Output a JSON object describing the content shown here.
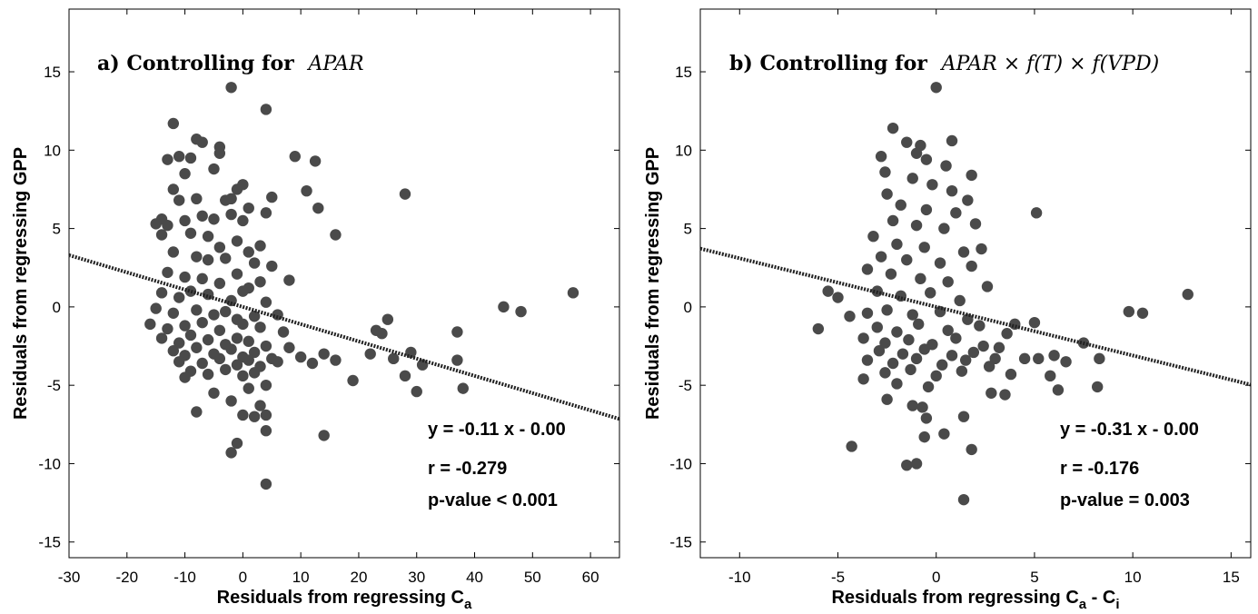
{
  "chart_data": [
    {
      "type": "scatter",
      "panel": "a",
      "title_prefix": "a) Controlling for",
      "title_math": "APAR",
      "xlabel_main": "Residuals from regressing C",
      "xlabel_sub": "a",
      "xlabel_tail": "",
      "ylabel": "Residuals from regressing GPP",
      "xlim": [
        -30,
        65
      ],
      "ylim": [
        -16,
        19
      ],
      "xticks": [
        -30,
        -20,
        -10,
        0,
        10,
        20,
        30,
        40,
        50,
        60
      ],
      "yticks": [
        -15,
        -10,
        -5,
        0,
        5,
        10,
        15
      ],
      "fit": {
        "slope": -0.11,
        "intercept": 0.0
      },
      "stats": [
        "y = -0.11 x - 0.00",
        "r = -0.279",
        "p-value < 0.001"
      ],
      "point_color": "#4a4a4a",
      "points": [
        [
          -2,
          14
        ],
        [
          4,
          12.6
        ],
        [
          -12,
          11.7
        ],
        [
          -8,
          10.7
        ],
        [
          -7,
          10.5
        ],
        [
          -4,
          10.2
        ],
        [
          -4,
          9.8
        ],
        [
          9,
          9.6
        ],
        [
          12.5,
          9.3
        ],
        [
          -13,
          9.4
        ],
        [
          -11,
          9.6
        ],
        [
          -9,
          9.5
        ],
        [
          -10,
          8.5
        ],
        [
          -5,
          8.8
        ],
        [
          -1,
          7.5
        ],
        [
          0,
          7.8
        ],
        [
          11,
          7.4
        ],
        [
          5,
          7.0
        ],
        [
          -12,
          7.5
        ],
        [
          -11,
          6.8
        ],
        [
          -8,
          6.9
        ],
        [
          -3,
          6.8
        ],
        [
          -2,
          6.9
        ],
        [
          1,
          6.3
        ],
        [
          13,
          6.3
        ],
        [
          28,
          7.2
        ],
        [
          4,
          6.0
        ],
        [
          -14,
          5.6
        ],
        [
          -13,
          5.2
        ],
        [
          -10,
          5.5
        ],
        [
          -7,
          5.8
        ],
        [
          -5,
          5.6
        ],
        [
          -2,
          5.9
        ],
        [
          0,
          5.5
        ],
        [
          -15,
          5.3
        ],
        [
          -14,
          4.6
        ],
        [
          -9,
          4.7
        ],
        [
          -6,
          4.5
        ],
        [
          -4,
          3.8
        ],
        [
          -1,
          4.2
        ],
        [
          1,
          3.5
        ],
        [
          3,
          3.9
        ],
        [
          16,
          4.6
        ],
        [
          -12,
          3.5
        ],
        [
          -8,
          3.2
        ],
        [
          -6,
          3.0
        ],
        [
          -3,
          3.1
        ],
        [
          2,
          2.8
        ],
        [
          5,
          2.6
        ],
        [
          -13,
          2.2
        ],
        [
          -10,
          1.9
        ],
        [
          -7,
          1.8
        ],
        [
          -4,
          1.5
        ],
        [
          -1,
          2.1
        ],
        [
          1,
          1.2
        ],
        [
          3,
          1.6
        ],
        [
          8,
          1.7
        ],
        [
          -14,
          0.9
        ],
        [
          -11,
          0.6
        ],
        [
          -9,
          1.0
        ],
        [
          -6,
          0.8
        ],
        [
          -2,
          0.4
        ],
        [
          0,
          1.0
        ],
        [
          4,
          0.3
        ],
        [
          -15,
          -0.1
        ],
        [
          -12,
          -0.4
        ],
        [
          -8,
          -0.2
        ],
        [
          -5,
          -0.5
        ],
        [
          -3,
          -0.3
        ],
        [
          -1,
          -0.8
        ],
        [
          2,
          -0.6
        ],
        [
          6,
          -0.5
        ],
        [
          -16,
          -1.1
        ],
        [
          -13,
          -1.4
        ],
        [
          -10,
          -1.2
        ],
        [
          -7,
          -1.0
        ],
        [
          -4,
          -1.5
        ],
        [
          0,
          -1.1
        ],
        [
          3,
          -1.3
        ],
        [
          7,
          -1.6
        ],
        [
          -14,
          -2.0
        ],
        [
          -11,
          -2.3
        ],
        [
          -9,
          -1.8
        ],
        [
          -6,
          -2.1
        ],
        [
          -3,
          -2.4
        ],
        [
          -1,
          -2.0
        ],
        [
          1,
          -2.2
        ],
        [
          4,
          -2.5
        ],
        [
          -12,
          -2.8
        ],
        [
          -10,
          -3.1
        ],
        [
          -8,
          -2.6
        ],
        [
          -5,
          -3.0
        ],
        [
          -2,
          -2.7
        ],
        [
          0,
          -3.2
        ],
        [
          2,
          -2.9
        ],
        [
          5,
          -3.3
        ],
        [
          8,
          -2.6
        ],
        [
          -11,
          -3.5
        ],
        [
          -7,
          -3.6
        ],
        [
          -4,
          -3.3
        ],
        [
          -1,
          -3.7
        ],
        [
          1,
          -3.4
        ],
        [
          3,
          -3.8
        ],
        [
          6,
          -3.5
        ],
        [
          10,
          -3.2
        ],
        [
          12,
          -3.6
        ],
        [
          -9,
          -4.1
        ],
        [
          -6,
          -4.3
        ],
        [
          -3,
          -4.0
        ],
        [
          0,
          -4.4
        ],
        [
          2,
          -4.2
        ],
        [
          -10,
          -4.5
        ],
        [
          -5,
          -5.5
        ],
        [
          1,
          -5.2
        ],
        [
          4,
          -5.0
        ],
        [
          -2,
          -6.0
        ],
        [
          3,
          -6.3
        ],
        [
          4,
          -6.9
        ],
        [
          -8,
          -6.7
        ],
        [
          0,
          -6.9
        ],
        [
          2,
          -7.0
        ],
        [
          4,
          -7.9
        ],
        [
          -1,
          -8.7
        ],
        [
          14,
          -8.2
        ],
        [
          -2,
          -9.3
        ],
        [
          4,
          -11.3
        ],
        [
          19,
          -4.7
        ],
        [
          22,
          -3.0
        ],
        [
          23,
          -1.5
        ],
        [
          24,
          -1.7
        ],
        [
          25,
          -0.8
        ],
        [
          26,
          -3.3
        ],
        [
          28,
          -4.4
        ],
        [
          29,
          -2.9
        ],
        [
          30,
          -5.4
        ],
        [
          31,
          -3.7
        ],
        [
          37,
          -1.6
        ],
        [
          37,
          -3.4
        ],
        [
          38,
          -5.2
        ],
        [
          45,
          0.0
        ],
        [
          48,
          -0.3
        ],
        [
          57,
          0.9
        ],
        [
          16,
          -3.4
        ],
        [
          14,
          -3.0
        ]
      ]
    },
    {
      "type": "scatter",
      "panel": "b",
      "title_prefix": "b) Controlling for",
      "title_math": "APAR × f(T) × f(VPD)",
      "xlabel_main": "Residuals from regressing C",
      "xlabel_sub": "a",
      "xlabel_tail": " - C",
      "xlabel_sub2": "i",
      "ylabel": "Residuals from regressing GPP",
      "xlim": [
        -12,
        16
      ],
      "ylim": [
        -16,
        19
      ],
      "xticks": [
        -10,
        -5,
        0,
        5,
        10,
        15
      ],
      "yticks": [
        -15,
        -10,
        -5,
        0,
        5,
        10,
        15
      ],
      "fit": {
        "slope": -0.31,
        "intercept": 0.0
      },
      "stats": [
        "y = -0.31 x - 0.00",
        "r = -0.176",
        "p-value = 0.003"
      ],
      "point_color": "#4a4a4a",
      "points": [
        [
          0,
          14
        ],
        [
          -2.2,
          11.4
        ],
        [
          0.8,
          10.6
        ],
        [
          -1.5,
          10.5
        ],
        [
          -0.8,
          10.3
        ],
        [
          -1.0,
          9.8
        ],
        [
          -2.8,
          9.6
        ],
        [
          -0.5,
          9.4
        ],
        [
          0.5,
          9.0
        ],
        [
          -2.6,
          8.6
        ],
        [
          -1.2,
          8.2
        ],
        [
          1.8,
          8.4
        ],
        [
          -0.2,
          7.8
        ],
        [
          -2.5,
          7.2
        ],
        [
          0.8,
          7.4
        ],
        [
          1.6,
          6.8
        ],
        [
          -1.8,
          6.5
        ],
        [
          -0.5,
          6.2
        ],
        [
          1.0,
          6.0
        ],
        [
          -2.2,
          5.5
        ],
        [
          -1.0,
          5.2
        ],
        [
          0.4,
          5.0
        ],
        [
          2.0,
          5.3
        ],
        [
          -3.2,
          4.5
        ],
        [
          -2.0,
          4.0
        ],
        [
          -0.6,
          3.8
        ],
        [
          1.4,
          3.5
        ],
        [
          2.3,
          3.7
        ],
        [
          -2.8,
          3.2
        ],
        [
          -1.5,
          3.0
        ],
        [
          0.2,
          2.8
        ],
        [
          1.8,
          2.6
        ],
        [
          -3.5,
          2.4
        ],
        [
          -2.3,
          2.1
        ],
        [
          -0.8,
          1.8
        ],
        [
          0.6,
          1.6
        ],
        [
          2.6,
          1.3
        ],
        [
          -3.0,
          1.0
        ],
        [
          -1.8,
          0.7
        ],
        [
          -0.3,
          0.9
        ],
        [
          1.2,
          0.4
        ],
        [
          -5.5,
          1.0
        ],
        [
          -5.0,
          0.6
        ],
        [
          -4.4,
          -0.6
        ],
        [
          -3.5,
          -0.4
        ],
        [
          -2.5,
          -0.2
        ],
        [
          -1.2,
          -0.5
        ],
        [
          0.2,
          -0.3
        ],
        [
          1.6,
          -0.8
        ],
        [
          -6,
          -1.4
        ],
        [
          -3.0,
          -1.3
        ],
        [
          -2.0,
          -1.6
        ],
        [
          -0.9,
          -1.1
        ],
        [
          0.6,
          -1.5
        ],
        [
          2.2,
          -1.2
        ],
        [
          -3.7,
          -2.0
        ],
        [
          -2.6,
          -2.3
        ],
        [
          -1.4,
          -2.1
        ],
        [
          -0.2,
          -2.4
        ],
        [
          1.0,
          -2.0
        ],
        [
          2.4,
          -2.5
        ],
        [
          -2.9,
          -2.8
        ],
        [
          -1.7,
          -3.0
        ],
        [
          -0.6,
          -2.7
        ],
        [
          0.8,
          -3.1
        ],
        [
          1.9,
          -2.9
        ],
        [
          3.0,
          -3.3
        ],
        [
          -3.5,
          -3.4
        ],
        [
          -2.2,
          -3.6
        ],
        [
          -1.0,
          -3.3
        ],
        [
          0.3,
          -3.7
        ],
        [
          1.5,
          -3.4
        ],
        [
          2.7,
          -3.8
        ],
        [
          -2.6,
          -4.2
        ],
        [
          -1.3,
          -4.0
        ],
        [
          0.0,
          -4.4
        ],
        [
          1.3,
          -4.1
        ],
        [
          -3.7,
          -4.6
        ],
        [
          -2.0,
          -4.9
        ],
        [
          -0.4,
          -5.1
        ],
        [
          -2.5,
          -5.9
        ],
        [
          -1.2,
          -6.3
        ],
        [
          -0.7,
          -6.4
        ],
        [
          -0.5,
          -7.1
        ],
        [
          0.4,
          -8.1
        ],
        [
          -0.6,
          -8.3
        ],
        [
          1.4,
          -7.0
        ],
        [
          1.8,
          -9.1
        ],
        [
          -4.3,
          -8.9
        ],
        [
          -1.5,
          -10.1
        ],
        [
          -1.0,
          -10.0
        ],
        [
          1.4,
          -12.3
        ],
        [
          3.6,
          -1.7
        ],
        [
          3.8,
          -4.3
        ],
        [
          3.5,
          -5.6
        ],
        [
          5.0,
          -1.0
        ],
        [
          5.2,
          -3.3
        ],
        [
          5.1,
          6.0
        ],
        [
          6.0,
          -3.1
        ],
        [
          6.2,
          -5.3
        ],
        [
          6.6,
          -3.5
        ],
        [
          7.5,
          -2.3
        ],
        [
          8.2,
          -5.1
        ],
        [
          8.3,
          -3.3
        ],
        [
          9.8,
          -0.3
        ],
        [
          10.5,
          -0.4
        ],
        [
          12.8,
          0.8
        ],
        [
          4.5,
          -3.3
        ],
        [
          2.8,
          -5.5
        ],
        [
          5.8,
          -4.4
        ],
        [
          4.0,
          -1.1
        ],
        [
          3.2,
          -2.6
        ]
      ]
    }
  ]
}
